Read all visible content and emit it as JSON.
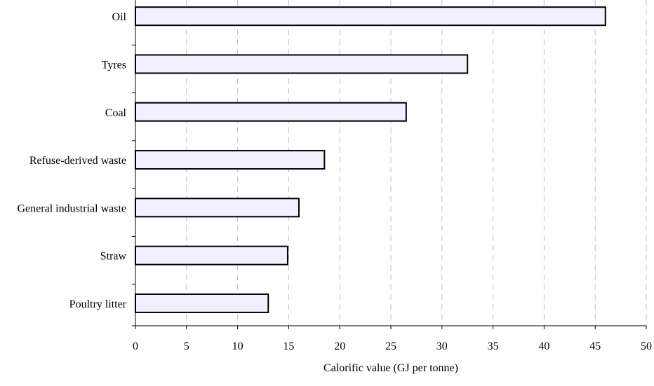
{
  "chart_data": {
    "type": "bar",
    "orientation": "horizontal",
    "categories": [
      "Oil",
      "Tyres",
      "Coal",
      "Refuse-derived waste",
      "General industrial waste",
      "Straw",
      "Poultry litter"
    ],
    "values": [
      46,
      32.5,
      26.5,
      18.5,
      16,
      14.9,
      13
    ],
    "xlabel": "Calorific value (GJ per tonne)",
    "xlim": [
      0,
      50
    ],
    "xticks": [
      0,
      5,
      10,
      15,
      20,
      25,
      30,
      35,
      40,
      45,
      50
    ],
    "grid": "vertical dashed",
    "colors": {
      "bar_fill": "#f0f0ff",
      "bar_stroke": "#000000",
      "grid": "#c0c0c0"
    }
  }
}
